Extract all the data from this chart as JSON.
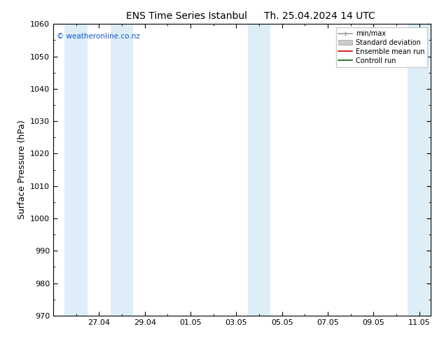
{
  "title1": "ENS Time Series Istanbul",
  "title2": "Th. 25.04.2024 14 UTC",
  "ylabel": "Surface Pressure (hPa)",
  "ylim": [
    970,
    1060
  ],
  "yticks": [
    970,
    980,
    990,
    1000,
    1010,
    1020,
    1030,
    1040,
    1050,
    1060
  ],
  "xlabels": [
    "27.04",
    "29.04",
    "01.05",
    "03.05",
    "05.05",
    "07.05",
    "09.05",
    "11.05"
  ],
  "x_positions": [
    2,
    4,
    6,
    8,
    10,
    12,
    14,
    16
  ],
  "xlim": [
    0,
    16.5
  ],
  "total_days": 16.5,
  "copyright": "© weatheronline.co.nz",
  "bg_color": "#ffffff",
  "plot_bg_color": "#ffffff",
  "shaded_bands": [
    {
      "start": 0.5,
      "end": 1.5,
      "color": "#ddeef8"
    },
    {
      "start": 2.5,
      "end": 3.5,
      "color": "#ddeef8"
    },
    {
      "start": 8.5,
      "end": 9.5,
      "color": "#ddeef8"
    },
    {
      "start": 15.5,
      "end": 16.5,
      "color": "#ddeef8"
    }
  ],
  "legend_labels": [
    "min/max",
    "Standard deviation",
    "Ensemble mean run",
    "Controll run"
  ],
  "title_fontsize": 10,
  "axis_label_fontsize": 9,
  "tick_fontsize": 8,
  "tick_color": "#000000",
  "spine_color": "#000000"
}
